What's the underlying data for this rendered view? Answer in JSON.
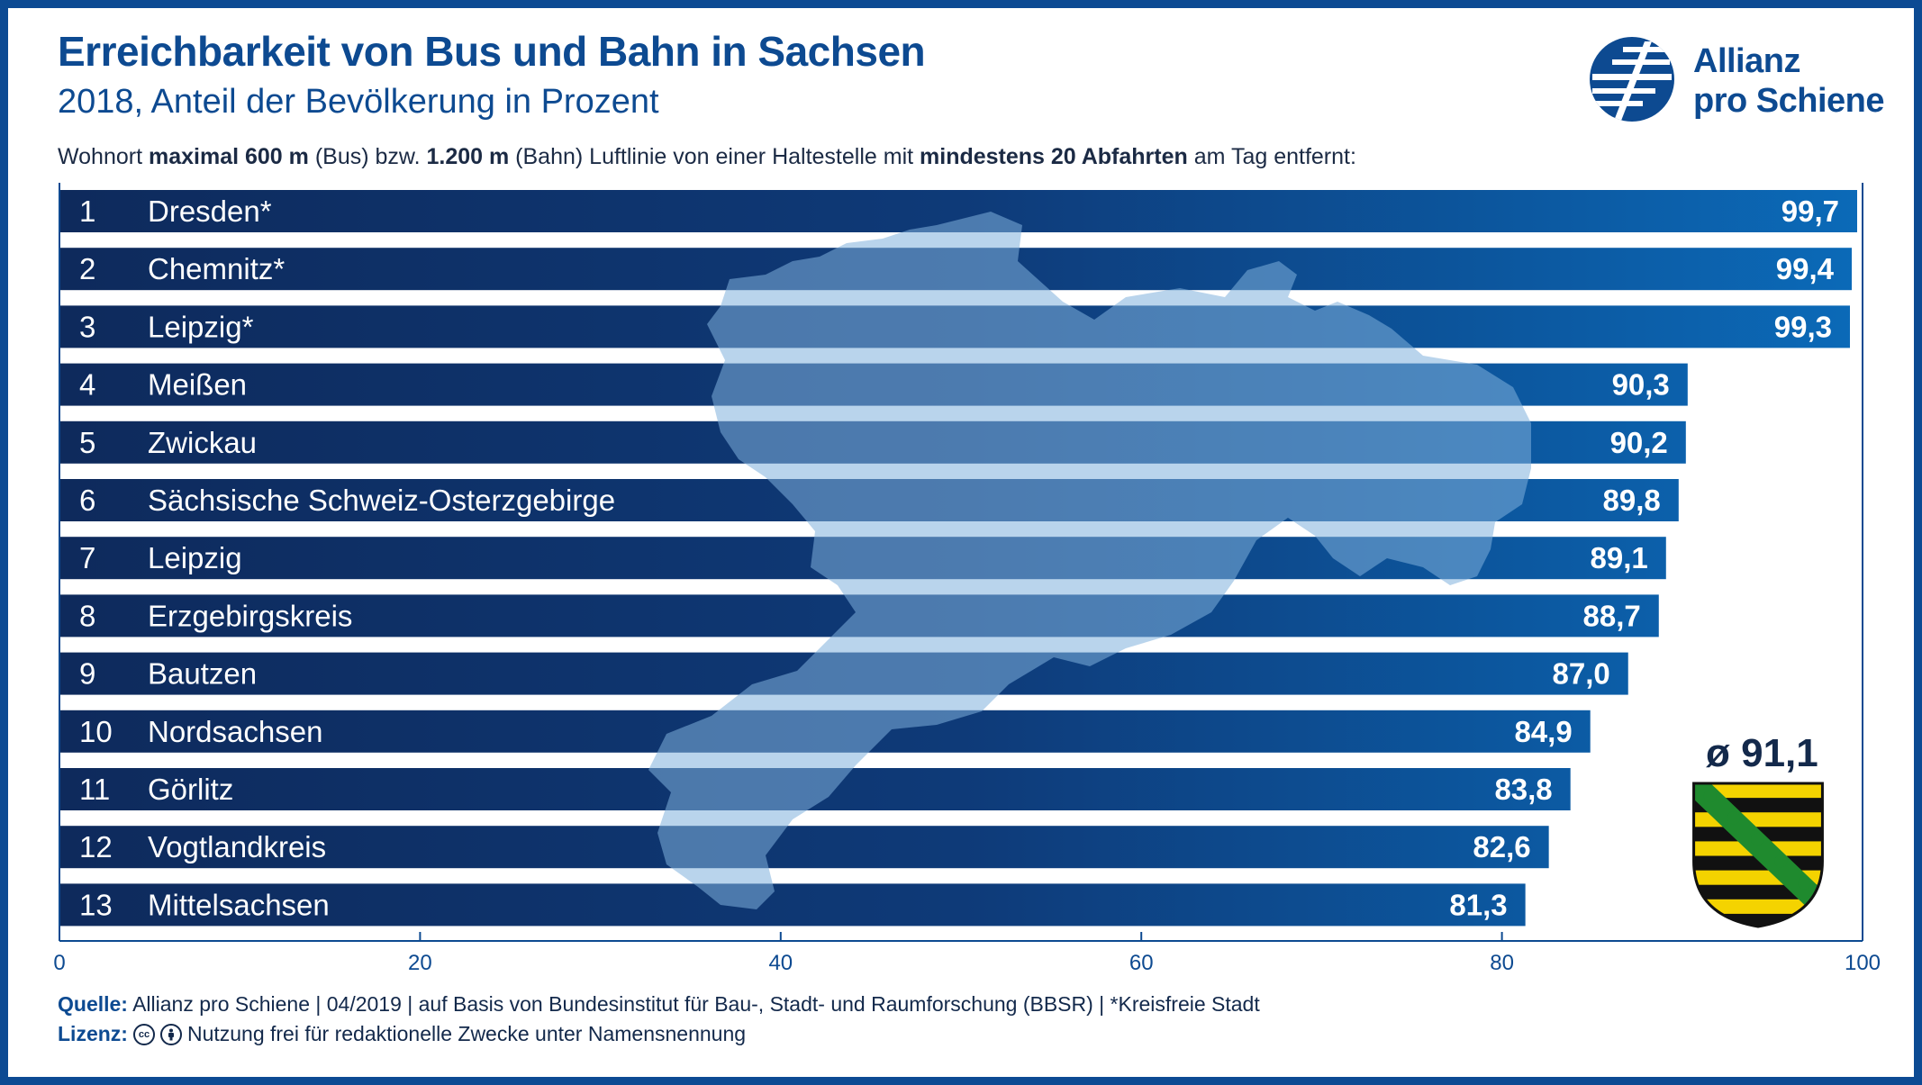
{
  "header": {
    "title": "Erreichbarkeit von Bus und Bahn in Sachsen",
    "subtitle": "2018, Anteil der Bevölkerung in Prozent",
    "description_parts": [
      {
        "text": "Wohnort ",
        "bold": false
      },
      {
        "text": "maximal 600 m",
        "bold": true
      },
      {
        "text": " (Bus) bzw. ",
        "bold": false
      },
      {
        "text": "1.200 m",
        "bold": true
      },
      {
        "text": " (Bahn) Luftlinie von einer Haltestelle mit ",
        "bold": false
      },
      {
        "text": "mindestens 20 Abfahrten",
        "bold": true
      },
      {
        "text": " am Tag entfernt:",
        "bold": false
      }
    ]
  },
  "logo": {
    "line1": "Allianz",
    "line2": "pro Schiene",
    "icon": "allianz-logo-icon",
    "color": "#0d4a91"
  },
  "chart_data": {
    "type": "bar",
    "orientation": "horizontal",
    "ranks": [
      "1",
      "2",
      "3",
      "4",
      "5",
      "6",
      "7",
      "8",
      "9",
      "10",
      "11",
      "12",
      "13"
    ],
    "categories": [
      "Dresden*",
      "Chemnitz*",
      "Leipzig*",
      "Meißen",
      "Zwickau",
      "Sächsische Schweiz-Osterzgebirge",
      "Leipzig",
      "Erzgebirgskreis",
      "Bautzen",
      "Nordsachsen",
      "Görlitz",
      "Vogtlandkreis",
      "Mittelsachsen"
    ],
    "values": [
      99.7,
      99.4,
      99.3,
      90.3,
      90.2,
      89.8,
      89.1,
      88.7,
      87.0,
      84.9,
      83.8,
      82.6,
      81.3
    ],
    "value_labels": [
      "99,7",
      "99,4",
      "99,3",
      "90,3",
      "90,2",
      "89,8",
      "89,1",
      "88,7",
      "87,0",
      "84,9",
      "83,8",
      "82,6",
      "81,3"
    ],
    "xlim": [
      0,
      100
    ],
    "xticks": [
      0,
      20,
      40,
      60,
      80,
      100
    ],
    "xtick_labels": [
      "0",
      "20",
      "40",
      "60",
      "80",
      "100"
    ],
    "grid": false,
    "colors": {
      "bar_dark": "#0e2a5c",
      "bar_light": "#0b6ab8",
      "axis": "#0d4a91",
      "map_shape": "#6f9fcc"
    }
  },
  "average": {
    "label": "ø 91,1",
    "icon": "saxony-coat-of-arms-icon"
  },
  "footer": {
    "source_label": "Quelle:",
    "source_text": "Allianz pro Schiene | 04/2019 | auf Basis von Bundesinstitut für Bau-, Stadt- und Raumforschung (BBSR) | *Kreisfreie Stadt",
    "license_label": "Lizenz:",
    "license_icons": [
      "cc-icon",
      "attribution-icon"
    ],
    "license_text": "Nutzung frei für redaktionelle Zwecke unter Namensnennung"
  }
}
